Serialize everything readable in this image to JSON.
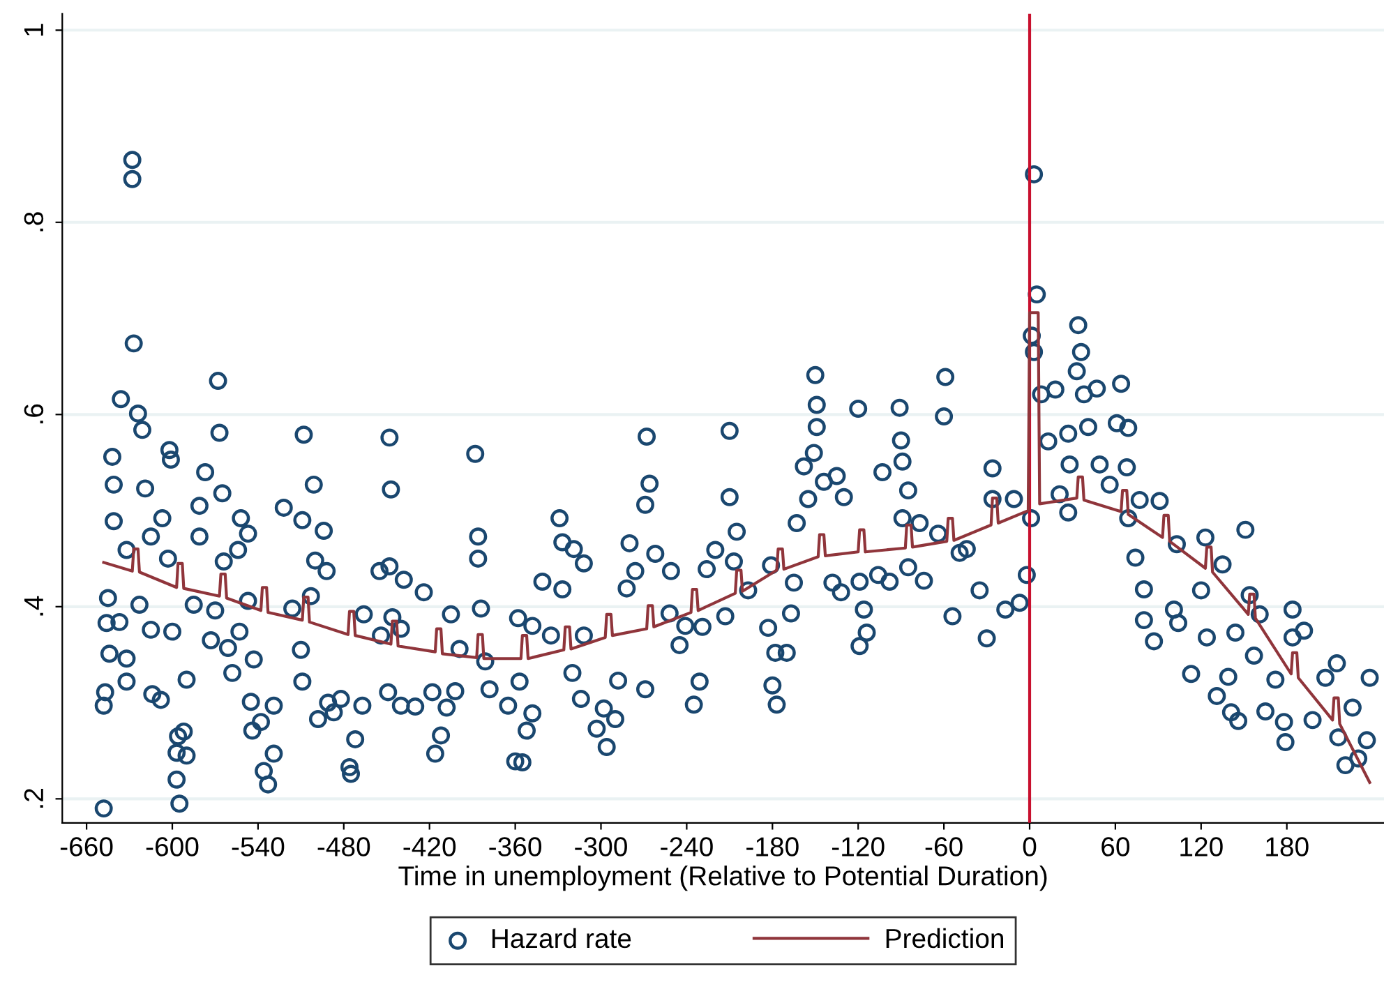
{
  "chart_data": {
    "type": "scatter",
    "xlabel": "Time in unemployment (Relative to Potential Duration)",
    "xlim": [
      -677,
      248
    ],
    "xticks": [
      -660,
      -600,
      -540,
      -480,
      -420,
      -360,
      -300,
      -240,
      -180,
      -120,
      -60,
      0,
      60,
      120,
      180
    ],
    "ylim": [
      0.175,
      1.017
    ],
    "yticks": [
      {
        "value": 0.2,
        "label": ".2"
      },
      {
        "value": 0.4,
        "label": ".4"
      },
      {
        "value": 0.6,
        "label": ".6"
      },
      {
        "value": 0.8,
        "label": ".8"
      },
      {
        "value": 1,
        "label": "1"
      }
    ],
    "grid": "y",
    "legend": "bottom",
    "ref_lines": [
      {
        "axis": "x",
        "value": 0,
        "color": "#c8102e"
      }
    ],
    "series": [
      {
        "name": "Hazard rate",
        "marker": "circle",
        "color": "#1a476f",
        "x": [
          -648,
          -628,
          -628,
          -627,
          -636,
          -624,
          -621,
          -642,
          -641,
          -641,
          -632,
          -645,
          -646,
          -637,
          -644,
          -632,
          -647,
          -648,
          -632,
          -568,
          -567,
          -602,
          -601,
          -619,
          -577,
          -581,
          -565,
          -607,
          -615,
          -603,
          -623,
          -615,
          -600,
          -614,
          -608,
          -596,
          -592,
          -597,
          -590,
          -597,
          -595,
          -590,
          -585,
          -573,
          -570,
          -581,
          -564,
          -554,
          -552,
          -547,
          -561,
          -558,
          -553,
          -547,
          -543,
          -545,
          -544,
          -538,
          -529,
          -536,
          -533,
          -529,
          -522,
          -508,
          -501,
          -509,
          -494,
          -500,
          -492,
          -503,
          -516,
          -510,
          -509,
          -498,
          -491,
          -482,
          -487,
          -476,
          -475,
          -472,
          -467,
          -448,
          -447,
          -455,
          -448,
          -438,
          -424,
          -446,
          -466,
          -440,
          -454,
          -449,
          -440,
          -430,
          -416,
          -412,
          -418,
          -408,
          -388,
          -386,
          -386,
          -405,
          -384,
          -381,
          -378,
          -365,
          -360,
          -402,
          -399,
          -355,
          -352,
          -348,
          -357,
          -358,
          -341,
          -329,
          -327,
          -319,
          -312,
          -327,
          -335,
          -320,
          -314,
          -303,
          -296,
          -290,
          -288,
          -298,
          -312,
          -348,
          -280,
          -276,
          -268,
          -266,
          -269,
          -262,
          -269,
          -282,
          -252,
          -251,
          -245,
          -235,
          -231,
          -241,
          -229,
          -226,
          -210,
          -210,
          -205,
          -220,
          -207,
          -213,
          -197,
          -183,
          -178,
          -180,
          -177,
          -170,
          -167,
          -181,
          -165,
          -158,
          -151,
          -150,
          -149,
          -149,
          -155,
          -163,
          -144,
          -135,
          -130,
          -138,
          -132,
          -119,
          -114,
          -116,
          -119,
          -120,
          -103,
          -91,
          -90,
          -89,
          -85,
          -89,
          -98,
          -106,
          -77,
          -74,
          -59,
          -60,
          -54,
          -49,
          -64,
          -85,
          3,
          5,
          1.5,
          3,
          -26,
          -30,
          -26,
          -11,
          -17,
          -7,
          -2,
          1,
          -44,
          -35,
          8,
          18,
          13,
          34,
          36,
          33,
          38,
          47,
          27,
          21,
          27,
          28,
          64,
          41,
          49,
          61,
          69,
          68,
          56,
          77,
          91,
          69,
          74,
          80,
          80,
          87,
          103,
          101,
          113,
          123,
          135,
          120,
          131,
          141,
          146,
          151,
          154,
          161,
          139,
          165,
          178,
          179,
          184,
          192,
          184,
          172,
          198,
          207,
          215,
          226,
          238,
          236,
          221,
          216,
          230,
          157,
          144,
          124,
          104
        ],
        "values": [
          0.19,
          0.865,
          0.845,
          0.674,
          0.616,
          0.601,
          0.584,
          0.556,
          0.527,
          0.489,
          0.459,
          0.409,
          0.383,
          0.384,
          0.351,
          0.346,
          0.311,
          0.297,
          0.322,
          0.635,
          0.581,
          0.563,
          0.553,
          0.523,
          0.54,
          0.505,
          0.518,
          0.492,
          0.473,
          0.45,
          0.402,
          0.376,
          0.374,
          0.309,
          0.303,
          0.265,
          0.27,
          0.248,
          0.245,
          0.22,
          0.195,
          0.324,
          0.402,
          0.365,
          0.396,
          0.473,
          0.447,
          0.459,
          0.492,
          0.476,
          0.357,
          0.331,
          0.374,
          0.406,
          0.345,
          0.301,
          0.271,
          0.28,
          0.297,
          0.229,
          0.215,
          0.247,
          0.503,
          0.579,
          0.527,
          0.49,
          0.479,
          0.448,
          0.437,
          0.411,
          0.398,
          0.355,
          0.322,
          0.283,
          0.3,
          0.304,
          0.29,
          0.233,
          0.226,
          0.262,
          0.297,
          0.576,
          0.522,
          0.437,
          0.442,
          0.428,
          0.415,
          0.389,
          0.392,
          0.377,
          0.37,
          0.311,
          0.297,
          0.296,
          0.247,
          0.266,
          0.311,
          0.295,
          0.559,
          0.473,
          0.45,
          0.392,
          0.398,
          0.343,
          0.314,
          0.297,
          0.239,
          0.312,
          0.356,
          0.238,
          0.271,
          0.289,
          0.322,
          0.388,
          0.426,
          0.492,
          0.467,
          0.46,
          0.445,
          0.418,
          0.37,
          0.331,
          0.304,
          0.273,
          0.254,
          0.283,
          0.323,
          0.294,
          0.37,
          0.38,
          0.466,
          0.437,
          0.577,
          0.528,
          0.506,
          0.455,
          0.314,
          0.419,
          0.393,
          0.437,
          0.36,
          0.298,
          0.322,
          0.38,
          0.379,
          0.439,
          0.583,
          0.514,
          0.478,
          0.459,
          0.447,
          0.39,
          0.417,
          0.378,
          0.352,
          0.318,
          0.298,
          0.352,
          0.393,
          0.443,
          0.425,
          0.546,
          0.56,
          0.641,
          0.61,
          0.587,
          0.512,
          0.487,
          0.53,
          0.536,
          0.514,
          0.425,
          0.415,
          0.359,
          0.373,
          0.397,
          0.426,
          0.606,
          0.54,
          0.607,
          0.573,
          0.551,
          0.521,
          0.492,
          0.426,
          0.433,
          0.487,
          0.427,
          0.639,
          0.598,
          0.39,
          0.456,
          0.476,
          0.441,
          0.85,
          0.725,
          0.682,
          0.665,
          0.544,
          0.367,
          0.512,
          0.512,
          0.397,
          0.404,
          0.433,
          0.492,
          0.46,
          0.417,
          0.621,
          0.626,
          0.572,
          0.693,
          0.665,
          0.645,
          0.621,
          0.627,
          0.58,
          0.517,
          0.498,
          0.548,
          0.632,
          0.587,
          0.548,
          0.591,
          0.586,
          0.545,
          0.527,
          0.511,
          0.51,
          0.492,
          0.451,
          0.418,
          0.386,
          0.364,
          0.465,
          0.397,
          0.33,
          0.472,
          0.444,
          0.417,
          0.307,
          0.29,
          0.281,
          0.48,
          0.412,
          0.392,
          0.327,
          0.291,
          0.28,
          0.259,
          0.397,
          0.375,
          0.368,
          0.324,
          0.282,
          0.326,
          0.341,
          0.295,
          0.326,
          0.261,
          0.235,
          0.264,
          0.242,
          0.349,
          0.373,
          0.368,
          0.383
        ]
      },
      {
        "name": "Prediction",
        "type": "line",
        "line_style": "solid",
        "color": "#90353b",
        "x": [
          -648,
          -628,
          -627,
          -624,
          -623,
          -597,
          -596,
          -593,
          -592,
          -567,
          -566,
          -563,
          -562,
          -538,
          -537,
          -534,
          -533,
          -509,
          -508,
          -505,
          -504,
          -477,
          -476,
          -473,
          -472,
          -447,
          -446,
          -443,
          -442,
          -416,
          -415,
          -412,
          -411,
          -387,
          -386,
          -383,
          -382,
          -356,
          -355,
          -352,
          -351,
          -326,
          -325,
          -322,
          -321,
          -297,
          -296,
          -293,
          -292,
          -268,
          -267,
          -264,
          -263,
          -237,
          -236,
          -233,
          -232,
          -206,
          -205,
          -202,
          -201,
          -177,
          -176,
          -173,
          -172,
          -148,
          -147,
          -144,
          -143,
          -120,
          -119,
          -116,
          -115,
          -87,
          -86,
          -83,
          -82,
          -58,
          -57,
          -54,
          -53,
          -27,
          -26,
          -23,
          -22,
          -1,
          0,
          6,
          7,
          33,
          34,
          37,
          38,
          64,
          65,
          68,
          69,
          93,
          94,
          97,
          98,
          123,
          124,
          127,
          128,
          153,
          154,
          157,
          158,
          183,
          184,
          187,
          188,
          212,
          213,
          216,
          217,
          238
        ],
        "values": [
          0.446,
          0.437,
          0.46,
          0.46,
          0.436,
          0.42,
          0.445,
          0.445,
          0.419,
          0.411,
          0.434,
          0.434,
          0.409,
          0.396,
          0.42,
          0.42,
          0.394,
          0.386,
          0.41,
          0.41,
          0.384,
          0.371,
          0.395,
          0.395,
          0.37,
          0.361,
          0.385,
          0.385,
          0.359,
          0.353,
          0.377,
          0.377,
          0.351,
          0.347,
          0.371,
          0.371,
          0.346,
          0.346,
          0.37,
          0.37,
          0.346,
          0.355,
          0.379,
          0.379,
          0.356,
          0.368,
          0.392,
          0.392,
          0.37,
          0.377,
          0.401,
          0.401,
          0.379,
          0.394,
          0.418,
          0.418,
          0.396,
          0.414,
          0.438,
          0.438,
          0.416,
          0.438,
          0.46,
          0.46,
          0.439,
          0.452,
          0.475,
          0.475,
          0.453,
          0.457,
          0.48,
          0.48,
          0.457,
          0.461,
          0.485,
          0.485,
          0.462,
          0.468,
          0.492,
          0.492,
          0.469,
          0.485,
          0.513,
          0.513,
          0.487,
          0.5,
          0.706,
          0.706,
          0.507,
          0.513,
          0.535,
          0.535,
          0.511,
          0.499,
          0.521,
          0.521,
          0.496,
          0.472,
          0.495,
          0.495,
          0.468,
          0.44,
          0.462,
          0.462,
          0.436,
          0.392,
          0.413,
          0.413,
          0.388,
          0.33,
          0.352,
          0.352,
          0.326,
          0.282,
          0.305,
          0.305,
          0.278,
          0.217
        ]
      }
    ]
  }
}
